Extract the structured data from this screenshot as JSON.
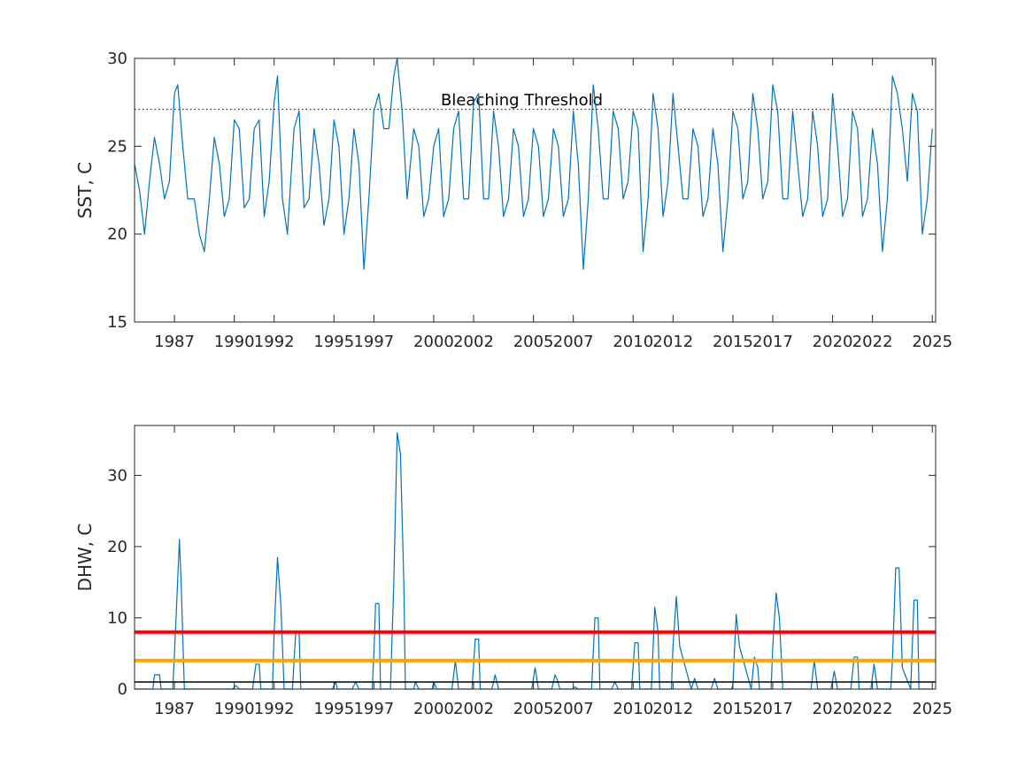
{
  "chart_data": [
    {
      "type": "line",
      "ylabel": "SST, C",
      "xlabel": "",
      "xlim": [
        "1985-01-01",
        "2025-03-01"
      ],
      "ylim": [
        15,
        30
      ],
      "yticks": [
        15,
        20,
        25,
        30
      ],
      "xticks": [
        "1987",
        "1990",
        "1992",
        "1995",
        "1997",
        "2000",
        "2002",
        "2005",
        "2007",
        "2010",
        "2012",
        "2015",
        "2017",
        "2020",
        "2022",
        "2025"
      ],
      "threshold": {
        "label": "Bleaching Threshold",
        "value": 27.1
      },
      "series": [
        {
          "color": "#0072BD",
          "x": [
            "1985-01",
            "1985-04",
            "1985-07",
            "1985-10",
            "1986-01",
            "1986-04",
            "1986-07",
            "1986-10",
            "1987-01",
            "1987-03",
            "1987-06",
            "1987-09",
            "1988-01",
            "1988-04",
            "1988-07",
            "1988-10",
            "1989-01",
            "1989-04",
            "1989-07",
            "1989-10",
            "1990-01",
            "1990-04",
            "1990-07",
            "1990-10",
            "1991-01",
            "1991-04",
            "1991-07",
            "1991-10",
            "1992-01",
            "1992-03",
            "1992-06",
            "1992-09",
            "1993-01",
            "1993-04",
            "1993-07",
            "1993-10",
            "1994-01",
            "1994-04",
            "1994-07",
            "1994-10",
            "1995-01",
            "1995-04",
            "1995-07",
            "1995-10",
            "1996-01",
            "1996-04",
            "1996-07",
            "1996-10",
            "1997-01",
            "1997-04",
            "1997-07",
            "1997-10",
            "1998-01",
            "1998-03",
            "1998-06",
            "1998-09",
            "1999-01",
            "1999-04",
            "1999-07",
            "1999-10",
            "2000-01",
            "2000-04",
            "2000-07",
            "2000-10",
            "2001-01",
            "2001-04",
            "2001-07",
            "2001-10",
            "2002-01",
            "2002-04",
            "2002-07",
            "2002-10",
            "2003-01",
            "2003-04",
            "2003-07",
            "2003-10",
            "2004-01",
            "2004-04",
            "2004-07",
            "2004-10",
            "2005-01",
            "2005-04",
            "2005-07",
            "2005-10",
            "2006-01",
            "2006-04",
            "2006-07",
            "2006-10",
            "2007-01",
            "2007-04",
            "2007-07",
            "2007-10",
            "2008-01",
            "2008-04",
            "2008-07",
            "2008-10",
            "2009-01",
            "2009-04",
            "2009-07",
            "2009-10",
            "2010-01",
            "2010-04",
            "2010-07",
            "2010-10",
            "2011-01",
            "2011-04",
            "2011-07",
            "2011-10",
            "2012-01",
            "2012-04",
            "2012-07",
            "2012-10",
            "2013-01",
            "2013-04",
            "2013-07",
            "2013-10",
            "2014-01",
            "2014-04",
            "2014-07",
            "2014-10",
            "2015-01",
            "2015-04",
            "2015-07",
            "2015-10",
            "2016-01",
            "2016-04",
            "2016-07",
            "2016-10",
            "2017-01",
            "2017-04",
            "2017-07",
            "2017-10",
            "2018-01",
            "2018-04",
            "2018-07",
            "2018-10",
            "2019-01",
            "2019-04",
            "2019-07",
            "2019-10",
            "2020-01",
            "2020-04",
            "2020-07",
            "2020-10",
            "2021-01",
            "2021-04",
            "2021-07",
            "2021-10",
            "2022-01",
            "2022-04",
            "2022-07",
            "2022-10",
            "2023-01",
            "2023-04",
            "2023-07",
            "2023-10",
            "2024-01",
            "2024-04",
            "2024-07",
            "2024-10",
            "2025-01"
          ],
          "y": [
            24,
            22.5,
            20,
            23,
            25.5,
            24,
            22,
            23,
            28,
            28.5,
            25,
            22,
            22,
            20,
            19,
            22,
            25.5,
            24,
            21,
            22,
            26.5,
            26,
            21.5,
            22,
            26,
            26.5,
            21,
            23,
            27.5,
            29,
            22,
            20,
            26,
            27,
            21.5,
            22,
            26,
            24,
            20.5,
            22,
            26.5,
            25,
            20,
            22,
            26,
            24,
            18,
            22,
            27,
            28,
            26,
            26,
            29,
            30,
            27,
            22,
            26,
            25,
            21,
            22,
            25,
            26,
            21,
            22,
            26,
            27,
            22,
            22,
            27.5,
            28,
            22,
            22,
            27,
            25,
            21,
            22,
            26,
            25,
            21,
            22,
            26,
            25,
            21,
            22,
            26,
            25,
            21,
            22,
            27,
            24,
            18,
            22,
            28.5,
            26,
            22,
            22,
            27,
            26,
            22,
            23,
            27,
            26,
            19,
            22,
            28,
            26,
            21,
            23,
            28,
            25,
            22,
            22,
            26,
            25,
            21,
            22,
            26,
            24,
            19,
            22,
            27,
            26,
            22,
            23,
            28,
            26,
            22,
            23,
            28.5,
            27,
            22,
            22,
            27,
            24,
            21,
            22,
            27,
            25,
            21,
            22,
            28,
            25,
            21,
            22,
            27,
            26,
            21,
            22,
            26,
            24,
            19,
            22,
            29,
            28,
            26,
            23,
            28,
            27,
            20,
            22,
            26
          ]
        }
      ]
    },
    {
      "type": "line",
      "ylabel": "DHW, C",
      "xlabel": "",
      "xlim": [
        "1985-01-01",
        "2025-03-01"
      ],
      "ylim": [
        0,
        37
      ],
      "yticks": [
        0,
        10,
        20,
        30
      ],
      "xticks": [
        "1987",
        "1990",
        "1992",
        "1995",
        "1997",
        "2000",
        "2002",
        "2005",
        "2007",
        "2010",
        "2012",
        "2015",
        "2017",
        "2020",
        "2022",
        "2025"
      ],
      "reference_lines": [
        {
          "value": 8,
          "color": "#FF0000"
        },
        {
          "value": 4,
          "color": "#FFA500"
        },
        {
          "value": 1,
          "color": "#000000"
        }
      ],
      "series": [
        {
          "color": "#0072BD",
          "x": [
            "1985-01",
            "1985-12",
            "1986-01",
            "1986-04",
            "1986-05",
            "1986-12",
            "1987-02",
            "1987-04",
            "1987-05",
            "1987-07",
            "1988-01",
            "1989-12",
            "1990-02",
            "1990-04",
            "1990-12",
            "1991-02",
            "1991-04",
            "1991-05",
            "1991-12",
            "1992-01",
            "1992-03",
            "1992-05",
            "1992-07",
            "1992-12",
            "1993-02",
            "1993-04",
            "1993-05",
            "1994-12",
            "1995-02",
            "1995-03",
            "1995-12",
            "1996-02",
            "1996-04",
            "1996-12",
            "1997-01",
            "1997-02",
            "1997-04",
            "1997-05",
            "1997-11",
            "1998-01",
            "1998-03",
            "1998-05",
            "1998-07",
            "1998-08",
            "1999-01",
            "1999-02",
            "1999-04",
            "1999-12",
            "2000-01",
            "2000-03",
            "2000-12",
            "2001-02",
            "2001-04",
            "2001-12",
            "2002-02",
            "2002-04",
            "2002-05",
            "2002-12",
            "2003-02",
            "2003-04",
            "2004-12",
            "2005-02",
            "2005-04",
            "2005-12",
            "2006-02",
            "2006-03",
            "2006-05",
            "2006-12",
            "2007-02",
            "2007-04",
            "2007-12",
            "2008-02",
            "2008-04",
            "2008-05",
            "2008-12",
            "2009-02",
            "2009-04",
            "2009-12",
            "2010-02",
            "2010-04",
            "2010-05",
            "2010-12",
            "2011-02",
            "2011-04",
            "2011-05",
            "2011-12",
            "2012-01",
            "2012-03",
            "2012-05",
            "2012-12",
            "2013-02",
            "2013-04",
            "2013-12",
            "2014-02",
            "2014-04",
            "2014-12",
            "2015-01",
            "2015-03",
            "2015-05",
            "2015-12",
            "2016-02",
            "2016-04",
            "2016-05",
            "2016-12",
            "2017-01",
            "2017-03",
            "2017-05",
            "2017-07",
            "2018-12",
            "2019-02",
            "2019-04",
            "2019-12",
            "2020-02",
            "2020-04",
            "2020-12",
            "2021-02",
            "2021-04",
            "2021-05",
            "2021-12",
            "2022-02",
            "2022-04",
            "2022-12",
            "2023-01",
            "2023-03",
            "2023-05",
            "2023-07",
            "2023-12",
            "2024-02",
            "2024-04",
            "2024-05",
            "2025-01"
          ],
          "y": [
            0,
            0,
            2,
            2,
            0,
            0,
            10,
            21,
            15,
            0,
            0,
            0,
            0.5,
            0,
            0,
            3.5,
            3.5,
            0,
            0,
            8,
            18.5,
            12,
            0,
            0,
            8,
            8,
            0,
            0,
            1,
            0,
            0,
            1,
            0,
            0,
            5,
            12,
            12,
            0,
            0,
            15,
            36,
            33,
            15,
            0,
            0,
            1,
            0,
            0,
            1,
            0,
            0,
            4,
            0,
            0,
            7,
            7,
            0,
            0,
            2,
            0,
            0,
            3,
            0,
            0,
            2,
            1.5,
            0,
            0,
            0.3,
            0,
            0,
            10,
            10,
            0,
            0,
            1,
            0,
            0,
            6.5,
            6.5,
            0,
            0,
            11.5,
            8,
            0,
            0,
            6,
            13,
            6,
            0,
            1.5,
            0,
            0,
            1.5,
            0,
            0,
            0.5,
            10.5,
            6,
            0,
            4.5,
            3,
            0,
            0,
            6,
            13.5,
            10,
            0,
            0,
            4,
            0,
            0,
            2.5,
            0,
            0,
            4.5,
            4.5,
            0,
            0,
            3.5,
            0,
            0,
            4,
            17,
            17,
            3,
            0,
            12.5,
            12.5,
            0,
            0
          ]
        }
      ]
    }
  ]
}
